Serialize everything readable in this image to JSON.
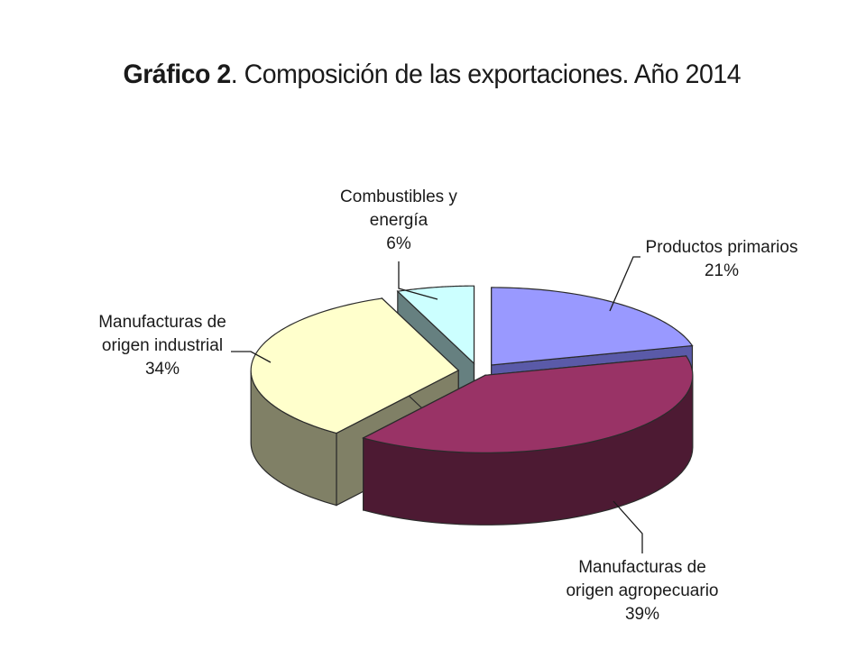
{
  "title_bold": "Gráfico 2",
  "title_rest": ". Composición de las exportaciones. Año 2014",
  "chart_data": {
    "type": "pie",
    "style": "3d-exploded",
    "slices": [
      {
        "label_lines": [
          "Productos primarios"
        ],
        "value": 21,
        "value_label": "21%",
        "color": "#9999ff",
        "side": "#5a5aa8"
      },
      {
        "label_lines": [
          "Manufacturas de",
          "origen agropecuario"
        ],
        "value": 39,
        "value_label": "39%",
        "color": "#993366",
        "side": "#4d1a33"
      },
      {
        "label_lines": [
          "Manufacturas de",
          "origen industrial"
        ],
        "value": 34,
        "value_label": "34%",
        "color": "#ffffcc",
        "side": "#808066"
      },
      {
        "label_lines": [
          "Combustibles y",
          "energía"
        ],
        "value": 6,
        "value_label": "6%",
        "color": "#ccffff",
        "side": "#668080"
      }
    ]
  }
}
